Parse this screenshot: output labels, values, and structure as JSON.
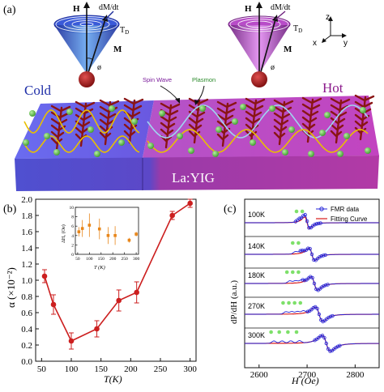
{
  "panel_a": {
    "label": "(a)",
    "cone_left": {
      "H": "H",
      "dMdt": "dM/dt",
      "TD": "T",
      "TD_sub": "D",
      "M": "M",
      "phi": "ø"
    },
    "cone_right": {
      "H": "H",
      "dMdt": "dM/dt",
      "TD": "T",
      "TD_sub": "D",
      "M": "M",
      "phi": "ø"
    },
    "axes": {
      "z": "z",
      "x": "x",
      "y": "y"
    },
    "cold_label": "Cold",
    "hot_label": "Hot",
    "spin_wave_label": "Spin Wave",
    "plasmon_label": "Plasmon",
    "material_label": "La:YIG",
    "colors": {
      "cold_slab": "#5a5ae6",
      "hot_slab": "#c04ac6",
      "cold_text": "#1f2fa8",
      "hot_text": "#8b1a8b",
      "particle": "#5fb84a",
      "wave": "#e8c000"
    }
  },
  "panel_b": {
    "label": "(b)",
    "chart_data": {
      "type": "scatter",
      "ylabel": "α (×10⁻²)",
      "xlabel": "T(K)",
      "x": [
        55,
        70,
        100,
        143,
        180,
        210,
        270,
        300
      ],
      "y": [
        1.05,
        0.7,
        0.25,
        0.4,
        0.75,
        0.85,
        1.8,
        1.95
      ],
      "yerr": [
        0.08,
        0.12,
        0.1,
        0.1,
        0.13,
        0.13,
        0.05,
        0.05
      ],
      "xlim": [
        40,
        310
      ],
      "ylim": [
        0,
        2.0
      ],
      "xticks": [
        "50",
        "100",
        "150",
        "200",
        "250",
        "300"
      ],
      "yticks": [
        "0.0",
        "0.2",
        "0.4",
        "0.6",
        "0.8",
        "1.0",
        "1.2",
        "1.4",
        "1.6",
        "1.8",
        "2.0"
      ],
      "line_color": "#cc1f1f",
      "inset": {
        "ylabel": "ΔH₀ (Oe)",
        "xlabel": "T (K)",
        "x": [
          55,
          70,
          100,
          143,
          180,
          210,
          270,
          300
        ],
        "y": [
          4.8,
          5.5,
          6.2,
          5.4,
          4.0,
          4.0,
          3.0,
          4.3
        ],
        "yerr": [
          1.0,
          1.8,
          2.5,
          2.2,
          1.8,
          2.0,
          0.5,
          0.5
        ],
        "xticks": [
          "50",
          "100",
          "150",
          "200",
          "250",
          "300"
        ],
        "yticks": [
          "0",
          "2",
          "4",
          "6",
          "8",
          "10"
        ],
        "xlim": [
          40,
          310
        ],
        "ylim": [
          0,
          10
        ],
        "color": "#e8861a"
      }
    }
  },
  "panel_c": {
    "label": "(c)",
    "chart_data": {
      "type": "line",
      "ylabel": "dP/dH (a.u.)",
      "xlabel": "H (Oe)",
      "xticks": [
        "2600",
        "2700",
        "2800"
      ],
      "xlim": [
        2570,
        2850
      ],
      "legend": {
        "fmr": "FMR data",
        "fit": "Fitting Curve"
      },
      "colors": {
        "fmr": "#2424d8",
        "fit": "#d81c1c",
        "marker": "#7ee06a"
      },
      "traces": [
        {
          "temp": "100K",
          "center": 2700,
          "marks": [
            2678,
            2690
          ]
        },
        {
          "temp": "140K",
          "center": 2710,
          "marks": [
            2670,
            2682
          ]
        },
        {
          "temp": "180K",
          "center": 2715,
          "marks": [
            2658,
            2670,
            2682
          ]
        },
        {
          "temp": "270K",
          "center": 2725,
          "marks": [
            2650,
            2662,
            2674,
            2686
          ]
        },
        {
          "temp": "300K",
          "center": 2740,
          "marks": [
            2625,
            2642,
            2660,
            2678
          ]
        }
      ]
    }
  }
}
